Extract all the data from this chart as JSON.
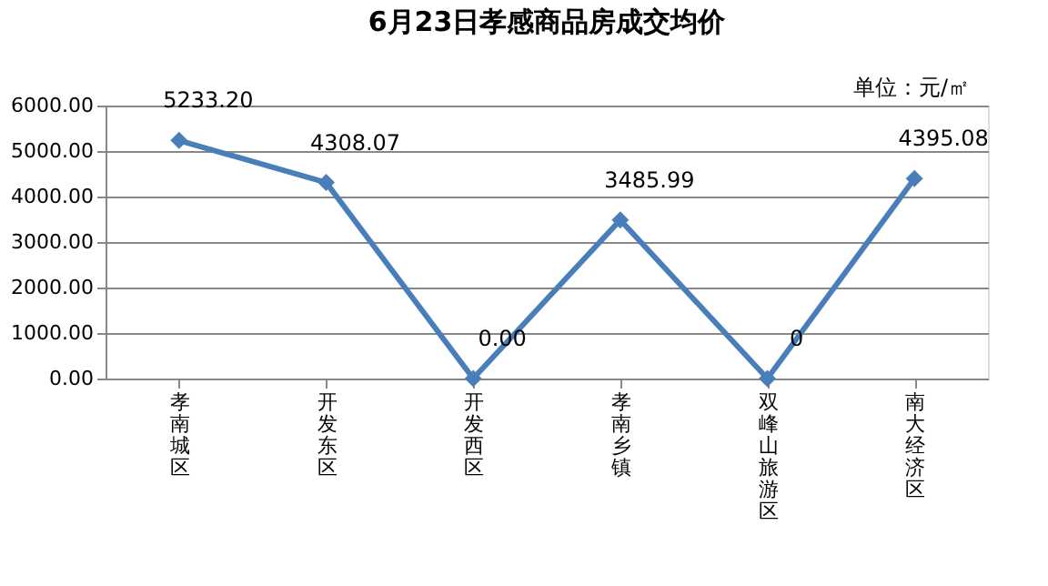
{
  "chart_data": {
    "type": "line",
    "title": "6月23日孝感商品房成交均价",
    "annotations": [
      "单位：元/㎡"
    ],
    "categories": [
      "孝南城区",
      "开发东区",
      "开发西区",
      "孝南乡镇",
      "双峰山旅游区",
      "南大经济区"
    ],
    "series": [
      {
        "color": "#4a7ebb",
        "values": [
          5233.2,
          4308.07,
          0.0,
          3485.99,
          0,
          4395.08
        ],
        "value_labels": [
          "5233.20",
          "4308.07",
          "0.00",
          "3485.99",
          "0",
          "4395.08"
        ]
      }
    ],
    "ylim": [
      0,
      6000
    ],
    "yticks": [
      {
        "value": 0,
        "label": "0.00"
      },
      {
        "value": 1000,
        "label": "1000.00"
      },
      {
        "value": 2000,
        "label": "2000.00"
      },
      {
        "value": 3000,
        "label": "3000.00"
      },
      {
        "value": 4000,
        "label": "4000.00"
      },
      {
        "value": 5000,
        "label": "5000.00"
      },
      {
        "value": 6000,
        "label": "6000.00"
      }
    ],
    "grid": "y",
    "marker": "diamond",
    "line_style": "solid"
  }
}
